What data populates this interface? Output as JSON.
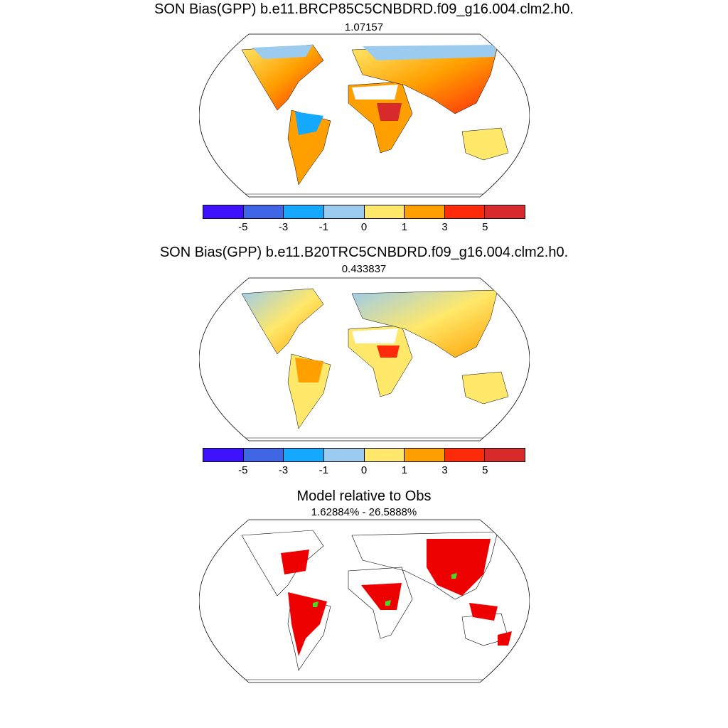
{
  "panels": [
    {
      "title": "SON Bias(GPP) b.e11.BRCP85C5CNBDRD.f09_g16.004.clm2.h0.",
      "subtitle": "1.07157"
    },
    {
      "title": "SON Bias(GPP) b.e11.B20TRC5CNBDRD.f09_g16.004.clm2.h0.",
      "subtitle": "0.433837"
    },
    {
      "title": "Model relative to Obs",
      "subtitle": "1.62884% - 26.5888%"
    }
  ],
  "colorbar": {
    "colors": [
      "#3f12ff",
      "#3f66e4",
      "#14a8ff",
      "#9bcbee",
      "#ffe86a",
      "#ff9f00",
      "#ff2a0a",
      "#d72a2a"
    ],
    "tick_labels": [
      "-5",
      "-3",
      "-1",
      "0",
      "1",
      "3",
      "5"
    ]
  },
  "mask_colors": {
    "primary": "#ee0000",
    "secondary": "#44dd22"
  }
}
